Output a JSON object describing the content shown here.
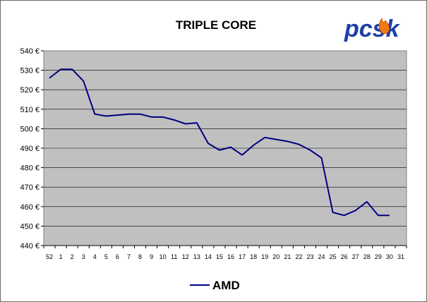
{
  "colors": {
    "plot_background": "#c0c0c0",
    "series_line": "#000080",
    "logo_blue": "#1f3fa6",
    "logo_flame": "#f07a10"
  },
  "logo": {
    "text": "pcsk"
  },
  "chart_data": {
    "type": "line",
    "title": "TRIPLE CORE",
    "xlabel": "",
    "ylabel": "",
    "categories": [
      "52",
      "1",
      "2",
      "3",
      "4",
      "5",
      "6",
      "7",
      "8",
      "9",
      "10",
      "11",
      "12",
      "13",
      "14",
      "15",
      "16",
      "17",
      "18",
      "19",
      "20",
      "21",
      "22",
      "23",
      "24",
      "25",
      "26",
      "27",
      "28",
      "29",
      "30",
      "31"
    ],
    "series": [
      {
        "name": "AMD",
        "values": [
          526,
          530.5,
          530.5,
          524.5,
          507.5,
          506.5,
          507,
          507.5,
          507.5,
          506,
          506,
          504.5,
          502.5,
          503,
          492.5,
          489,
          490.5,
          486.5,
          491.5,
          495.5,
          494.5,
          493.5,
          492,
          489,
          485,
          457,
          455.5,
          458,
          462.5,
          455.5,
          455.5,
          null
        ]
      }
    ],
    "ylim": [
      440,
      540
    ],
    "yticks": [
      "440 €",
      "450 €",
      "460 €",
      "470 €",
      "480 €",
      "490 €",
      "500 €",
      "510 €",
      "520 €",
      "530 €",
      "540 €"
    ],
    "grid": true,
    "legend": "bottom-center"
  }
}
